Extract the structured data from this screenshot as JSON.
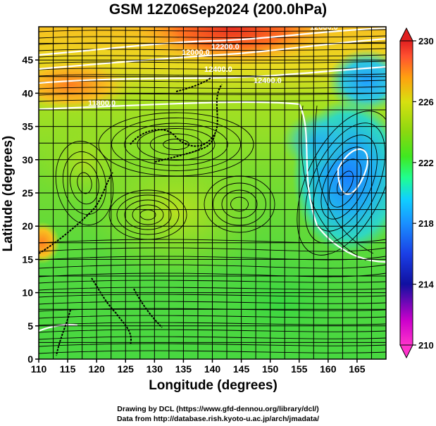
{
  "title": "GSM 12Z06Sep2024 (200.0hPa)",
  "x_axis": {
    "label": "Longitude (degrees)",
    "ticks": [
      "110",
      "115",
      "120",
      "125",
      "130",
      "135",
      "140",
      "145",
      "150",
      "155",
      "160",
      "165"
    ]
  },
  "y_axis": {
    "label": "Latitude (degrees)",
    "ticks": [
      "0",
      "5",
      "10",
      "15",
      "20",
      "25",
      "30",
      "35",
      "40",
      "45"
    ]
  },
  "colorbar": {
    "ticks": [
      "210",
      "214",
      "218",
      "222",
      "226",
      "230"
    ],
    "colors": [
      "#ff33cc",
      "#cc00cc",
      "#1010a0",
      "#1a3fe6",
      "#1a90ff",
      "#10d0ff",
      "#20ff90",
      "#40e820",
      "#8ad810",
      "#d8e010",
      "#ffa010",
      "#ff5030",
      "#e02020"
    ]
  },
  "contour_labels": [
    "12000.0",
    "12400.0",
    "11800.0",
    "12200.0",
    "12400.0",
    "12600.0"
  ],
  "credits": {
    "line1": "Drawing by DCL (https://www.gfd-dennou.org/library/dcl/)",
    "line2": "Data from http://database.rish.kyoto-u.ac.jp/arch/jmadata/"
  },
  "chart_data": {
    "type": "heatmap",
    "title": "GSM 12Z06Sep2024 (200.0hPa)",
    "xlabel": "Longitude (degrees)",
    "ylabel": "Latitude (degrees)",
    "xlim": [
      110,
      170
    ],
    "ylim": [
      0,
      50
    ],
    "colorbar_range": [
      210,
      230
    ],
    "grid": true,
    "field_features": [
      {
        "lon": 140,
        "lat": 49,
        "value": 229
      },
      {
        "lon": 125,
        "lat": 47,
        "value": 227
      },
      {
        "lon": 111,
        "lat": 20,
        "value": 227
      },
      {
        "lon": 163,
        "lat": 30,
        "value": 218
      },
      {
        "lon": 166,
        "lat": 44,
        "value": 219
      },
      {
        "lon": 157,
        "lat": 35,
        "value": 220
      },
      {
        "lon": 130,
        "lat": 30,
        "value": 223
      },
      {
        "lon": 140,
        "lat": 10,
        "value": 222
      },
      {
        "lon": 120,
        "lat": 5,
        "value": 223
      }
    ]
  }
}
